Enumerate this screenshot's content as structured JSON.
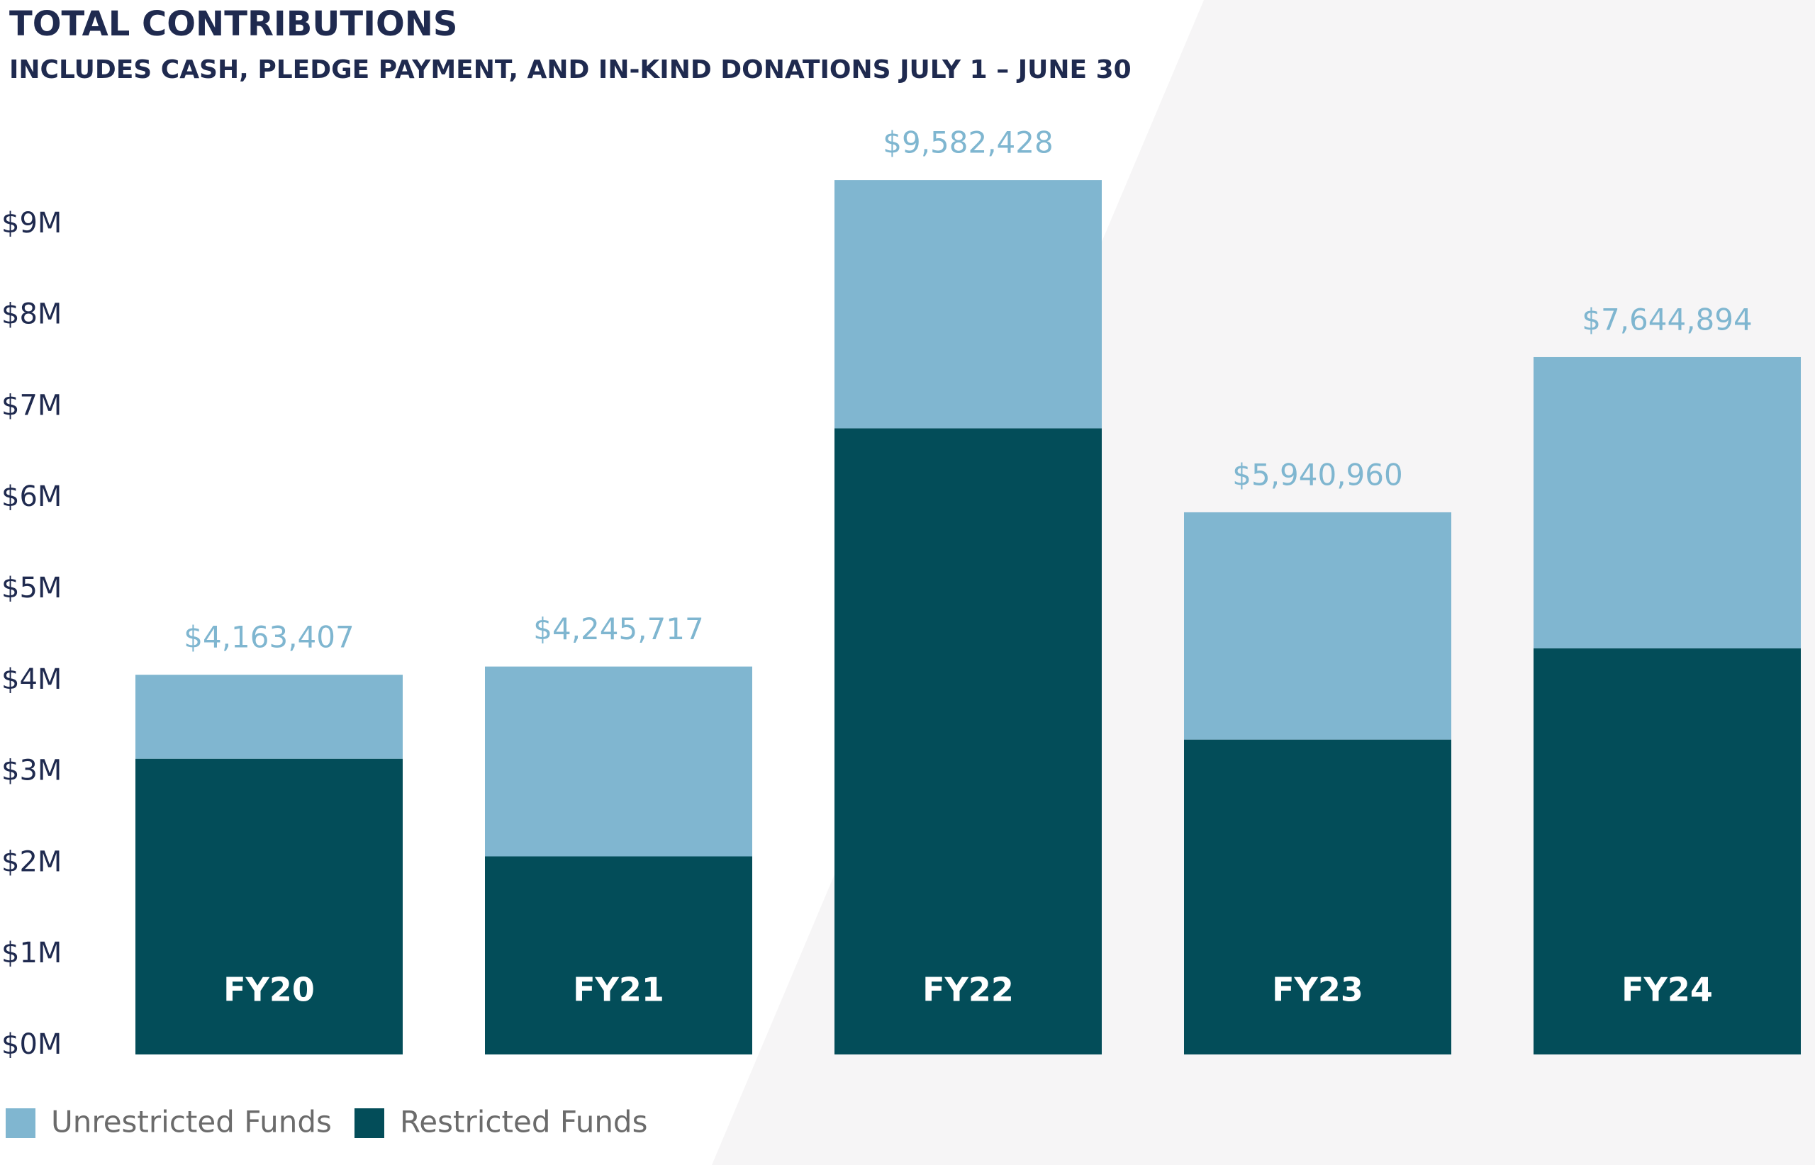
{
  "chart_data": {
    "type": "stacked_bar",
    "title": "TOTAL CONTRIBUTIONS",
    "subtitle": "INCLUDES CASH, PLEDGE PAYMENT, AND IN-KIND DONATIONS JULY 1 – JUNE 30",
    "categories": [
      "FY20",
      "FY21",
      "FY22",
      "FY23",
      "FY24"
    ],
    "series": [
      {
        "name": "Unrestricted Funds",
        "color": "#80b6d0",
        "values": [
          920000,
          2080000,
          2720000,
          2490000,
          3190000
        ]
      },
      {
        "name": "Restricted Funds",
        "color": "#034d59",
        "values": [
          3240000,
          2170000,
          6860000,
          3450000,
          4450000
        ]
      }
    ],
    "totals": {
      "values": [
        4163407,
        4245717,
        9582428,
        5940960,
        7644894
      ],
      "value_labels": [
        "$4,163,407",
        "$4,245,717",
        "$9,582,428",
        "$5,940,960",
        "$7,644,894"
      ]
    },
    "ylim": [
      0,
      10000000
    ],
    "yticks": [
      {
        "value": 0,
        "label": "$0M"
      },
      {
        "value": 1000000,
        "label": "$1M"
      },
      {
        "value": 2000000,
        "label": "$2M"
      },
      {
        "value": 3000000,
        "label": "$3M"
      },
      {
        "value": 4000000,
        "label": "$4M"
      },
      {
        "value": 5000000,
        "label": "$5M"
      },
      {
        "value": 6000000,
        "label": "$6M"
      },
      {
        "value": 7000000,
        "label": "$7M"
      },
      {
        "value": 8000000,
        "label": "$8M"
      },
      {
        "value": 9000000,
        "label": "$9M"
      }
    ],
    "grid": false
  }
}
